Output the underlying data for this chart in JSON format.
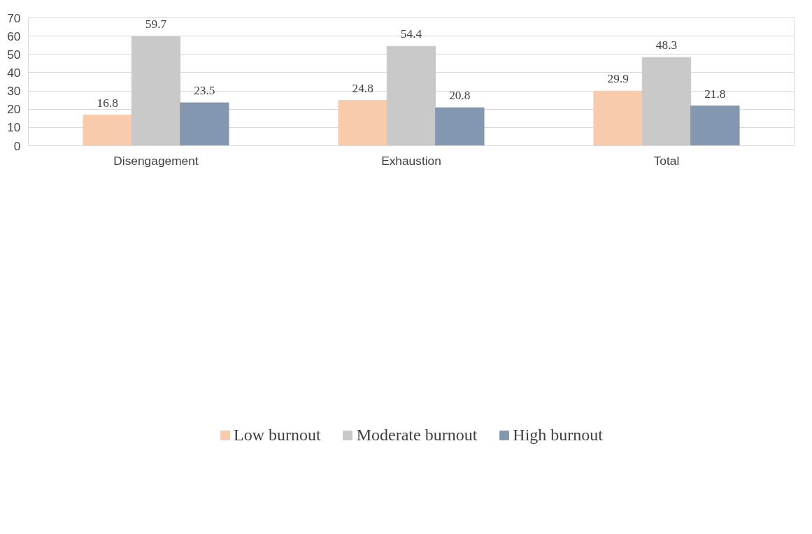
{
  "chart_data": {
    "type": "bar",
    "categories": [
      "Disengagement",
      "Exhaustion",
      "Total"
    ],
    "series": [
      {
        "name": "Low burnout",
        "color": "#f8cbad",
        "values": [
          16.8,
          24.8,
          29.9
        ]
      },
      {
        "name": "Moderate burnout",
        "color": "#c9c9c9",
        "values": [
          59.7,
          54.4,
          48.3
        ]
      },
      {
        "name": "High burnout",
        "color": "#8497b0",
        "values": [
          23.5,
          20.8,
          21.8
        ]
      }
    ],
    "ylim": [
      0,
      70
    ],
    "yticks": [
      0,
      10,
      20,
      30,
      40,
      50,
      60,
      70
    ],
    "grid": "y",
    "legend": "bottom",
    "data_labels": true
  }
}
